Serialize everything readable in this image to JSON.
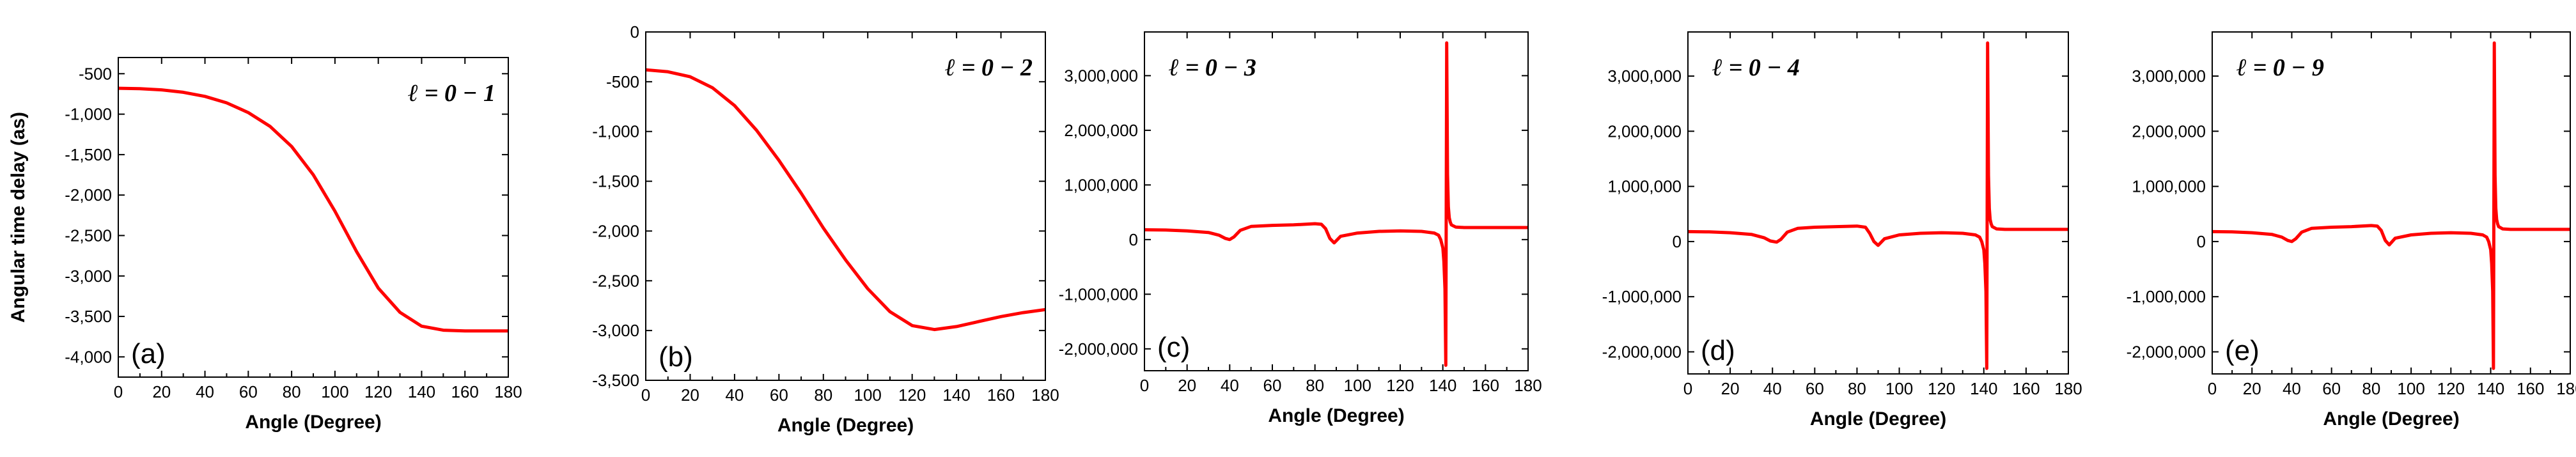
{
  "figure": {
    "line_color": "#ff0000",
    "axis_color": "#000000"
  },
  "chart_data": [
    {
      "type": "line",
      "panel_label": "(a)",
      "annotation": "ℓ = 0 − 1",
      "xlabel": "Angle (Degree)",
      "ylabel": "Angular time delay (as)",
      "xlim": [
        0,
        180
      ],
      "ylim": [
        -4250,
        -300
      ],
      "xticks": [
        0,
        20,
        40,
        60,
        80,
        100,
        120,
        140,
        160,
        180
      ],
      "xtick_labels": [
        "0",
        "20",
        "40",
        "60",
        "80",
        "100",
        "120",
        "140",
        "160",
        "180"
      ],
      "yticks": [
        -500,
        -1000,
        -1500,
        -2000,
        -2500,
        -3000,
        -3500,
        -4000
      ],
      "ytick_labels": [
        "-500",
        "-1,000",
        "-1,500",
        "-2,000",
        "-2,500",
        "-3,000",
        "-3,500",
        "-4,000"
      ],
      "series": [
        {
          "name": "ℓ = 0 − 1",
          "x": [
            0,
            10,
            20,
            30,
            40,
            50,
            60,
            70,
            80,
            90,
            100,
            110,
            120,
            130,
            140,
            150,
            160,
            170,
            180
          ],
          "y": [
            -680,
            -685,
            -700,
            -730,
            -780,
            -860,
            -980,
            -1150,
            -1400,
            -1750,
            -2200,
            -2700,
            -3150,
            -3450,
            -3620,
            -3670,
            -3680,
            -3680,
            -3680
          ]
        }
      ]
    },
    {
      "type": "line",
      "panel_label": "(b)",
      "annotation": "ℓ = 0 − 2",
      "xlabel": "Angle (Degree)",
      "ylabel": "",
      "xlim": [
        0,
        180
      ],
      "ylim": [
        -3500,
        0
      ],
      "xticks": [
        0,
        20,
        40,
        60,
        80,
        100,
        120,
        140,
        160,
        180
      ],
      "xtick_labels": [
        "0",
        "20",
        "40",
        "60",
        "80",
        "100",
        "120",
        "140",
        "160",
        "180"
      ],
      "yticks": [
        0,
        -500,
        -1000,
        -1500,
        -2000,
        -2500,
        -3000,
        -3500
      ],
      "ytick_labels": [
        "0",
        "-500",
        "-1,000",
        "-1,500",
        "-2,000",
        "-2,500",
        "-3,000",
        "-3,500"
      ],
      "series": [
        {
          "name": "ℓ = 0 − 2",
          "x": [
            0,
            10,
            20,
            30,
            40,
            50,
            60,
            70,
            80,
            90,
            100,
            110,
            120,
            130,
            140,
            150,
            160,
            170,
            180
          ],
          "y": [
            -380,
            -400,
            -450,
            -560,
            -740,
            -990,
            -1290,
            -1620,
            -1970,
            -2290,
            -2580,
            -2810,
            -2950,
            -2990,
            -2960,
            -2910,
            -2860,
            -2820,
            -2790
          ]
        }
      ]
    },
    {
      "type": "line",
      "panel_label": "(c)",
      "annotation": "ℓ = 0 − 3",
      "xlabel": "Angle (Degree)",
      "ylabel": "",
      "xlim": [
        0,
        180
      ],
      "ylim": [
        -2400000,
        3800000
      ],
      "xticks": [
        0,
        20,
        40,
        60,
        80,
        100,
        120,
        140,
        160,
        180
      ],
      "xtick_labels": [
        "0",
        "20",
        "40",
        "60",
        "80",
        "100",
        "120",
        "140",
        "160",
        "180"
      ],
      "yticks": [
        3000000,
        2000000,
        1000000,
        0,
        -1000000,
        -2000000
      ],
      "ytick_labels": [
        "3,000,000",
        "2,000,000",
        "1,000,000",
        "0",
        "-1,000,000",
        "-2,000,000"
      ],
      "series": [
        {
          "name": "ℓ = 0 − 3",
          "x": [
            0,
            10,
            20,
            30,
            35,
            38,
            40,
            42,
            45,
            50,
            60,
            70,
            80,
            83,
            85,
            87,
            89,
            92,
            100,
            110,
            120,
            130,
            136,
            138,
            139,
            140,
            140.5,
            141,
            141.4,
            141.8,
            142.2,
            142.6,
            143,
            143.5,
            144,
            146,
            150,
            160,
            170,
            180
          ],
          "y": [
            180000,
            175000,
            160000,
            130000,
            80000,
            20000,
            0,
            50000,
            170000,
            240000,
            260000,
            270000,
            290000,
            280000,
            200000,
            20000,
            -60000,
            60000,
            120000,
            150000,
            160000,
            150000,
            120000,
            80000,
            0,
            -150000,
            -400000,
            -900000,
            -2300000,
            3600000,
            1200000,
            600000,
            400000,
            320000,
            270000,
            230000,
            220000,
            220000,
            220000,
            220000
          ]
        }
      ]
    },
    {
      "type": "line",
      "panel_label": "(d)",
      "annotation": "ℓ = 0 − 4",
      "xlabel": "Angle (Degree)",
      "ylabel": "",
      "xlim": [
        0,
        180
      ],
      "ylim": [
        -2400000,
        3800000
      ],
      "xticks": [
        0,
        20,
        40,
        60,
        80,
        100,
        120,
        140,
        160,
        180
      ],
      "xtick_labels": [
        "0",
        "20",
        "40",
        "60",
        "80",
        "100",
        "120",
        "140",
        "160",
        "180"
      ],
      "yticks": [
        3000000,
        2000000,
        1000000,
        0,
        -1000000,
        -2000000
      ],
      "ytick_labels": [
        "3,000,000",
        "2,000,000",
        "1,000,000",
        "0",
        "-1,000,000",
        "-2,000,000"
      ],
      "series": [
        {
          "name": "ℓ = 0 − 4",
          "x": [
            0,
            10,
            20,
            30,
            36,
            39,
            42,
            44,
            47,
            52,
            60,
            70,
            80,
            84,
            86,
            88,
            90,
            93,
            100,
            110,
            120,
            130,
            136,
            138,
            139,
            140,
            140.5,
            141,
            141.4,
            141.8,
            142.2,
            142.6,
            143,
            143.5,
            144,
            146,
            150,
            160,
            170,
            180
          ],
          "y": [
            180000,
            175000,
            160000,
            130000,
            70000,
            10000,
            -10000,
            40000,
            170000,
            240000,
            260000,
            270000,
            280000,
            260000,
            150000,
            0,
            -70000,
            50000,
            120000,
            150000,
            160000,
            150000,
            120000,
            80000,
            0,
            -150000,
            -400000,
            -900000,
            -2300000,
            3600000,
            1200000,
            600000,
            400000,
            320000,
            270000,
            230000,
            220000,
            220000,
            220000,
            220000
          ]
        }
      ]
    },
    {
      "type": "line",
      "panel_label": "(e)",
      "annotation": "ℓ = 0 − 9",
      "xlabel": "Angle (Degree)",
      "ylabel": "",
      "xlim": [
        0,
        180
      ],
      "ylim": [
        -2400000,
        3800000
      ],
      "xticks": [
        0,
        20,
        40,
        60,
        80,
        100,
        120,
        140,
        160,
        180
      ],
      "xtick_labels": [
        "0",
        "20",
        "40",
        "60",
        "80",
        "100",
        "120",
        "140",
        "160",
        "180"
      ],
      "yticks": [
        3000000,
        2000000,
        1000000,
        0,
        -1000000,
        -2000000
      ],
      "ytick_labels": [
        "3,000,000",
        "2,000,000",
        "1,000,000",
        "0",
        "-1,000,000",
        "-2,000,000"
      ],
      "series": [
        {
          "name": "ℓ = 0 − 9",
          "x": [
            0,
            10,
            20,
            30,
            35,
            38,
            40,
            42,
            45,
            50,
            60,
            70,
            80,
            83,
            85,
            87,
            89,
            92,
            100,
            110,
            120,
            130,
            136,
            138,
            139,
            140,
            140.5,
            141,
            141.4,
            141.8,
            142.2,
            142.6,
            143,
            143.5,
            144,
            146,
            150,
            160,
            170,
            180
          ],
          "y": [
            180000,
            175000,
            160000,
            130000,
            80000,
            20000,
            0,
            50000,
            170000,
            240000,
            260000,
            270000,
            290000,
            280000,
            200000,
            20000,
            -60000,
            60000,
            120000,
            150000,
            160000,
            150000,
            120000,
            80000,
            0,
            -150000,
            -400000,
            -900000,
            -2300000,
            3600000,
            1200000,
            600000,
            400000,
            320000,
            270000,
            230000,
            220000,
            220000,
            220000,
            220000
          ]
        }
      ]
    }
  ]
}
